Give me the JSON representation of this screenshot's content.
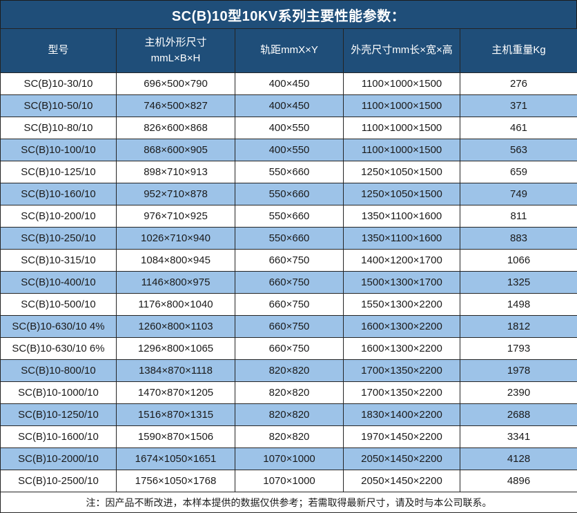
{
  "colors": {
    "header_bg": "#1F4E79",
    "stripe_blue": "#9DC3E8",
    "row_white": "#FFFFFF",
    "border": "#232323",
    "header_text": "#FFFFFF",
    "body_text": "#1A1A1A"
  },
  "chart_data": {
    "type": "table",
    "title": "SC(B)10型10KV系列主要性能参数：",
    "columns": [
      {
        "id": "model",
        "lines": [
          "型号"
        ]
      },
      {
        "id": "main-dimensions",
        "lines": [
          "主机外形尺寸",
          "mmL×B×H"
        ]
      },
      {
        "id": "rail-gauge",
        "lines": [
          "轨距mmX×Y"
        ]
      },
      {
        "id": "shell-dimensions",
        "lines": [
          "外壳尺寸mm长×宽×高"
        ]
      },
      {
        "id": "weight",
        "lines": [
          "主机重量Kg"
        ]
      }
    ],
    "rows": [
      [
        "SC(B)10-30/10",
        "696×500×790",
        "400×450",
        "1100×1000×1500",
        "276"
      ],
      [
        "SC(B)10-50/10",
        "746×500×827",
        "400×450",
        "1100×1000×1500",
        "371"
      ],
      [
        "SC(B)10-80/10",
        "826×600×868",
        "400×550",
        "1100×1000×1500",
        "461"
      ],
      [
        "SC(B)10-100/10",
        "868×600×905",
        "400×550",
        "1100×1000×1500",
        "563"
      ],
      [
        "SC(B)10-125/10",
        "898×710×913",
        "550×660",
        "1250×1050×1500",
        "659"
      ],
      [
        "SC(B)10-160/10",
        "952×710×878",
        "550×660",
        "1250×1050×1500",
        "749"
      ],
      [
        "SC(B)10-200/10",
        "976×710×925",
        "550×660",
        "1350×1100×1600",
        "811"
      ],
      [
        "SC(B)10-250/10",
        "1026×710×940",
        "550×660",
        "1350×1100×1600",
        "883"
      ],
      [
        "SC(B)10-315/10",
        "1084×800×945",
        "660×750",
        "1400×1200×1700",
        "1066"
      ],
      [
        "SC(B)10-400/10",
        "1146×800×975",
        "660×750",
        "1500×1300×1700",
        "1325"
      ],
      [
        "SC(B)10-500/10",
        "1176×800×1040",
        "660×750",
        "1550×1300×2200",
        "1498"
      ],
      [
        "SC(B)10-630/10 4%",
        "1260×800×1103",
        "660×750",
        "1600×1300×2200",
        "1812"
      ],
      [
        "SC(B)10-630/10 6%",
        "1296×800×1065",
        "660×750",
        "1600×1300×2200",
        "1793"
      ],
      [
        "SC(B)10-800/10",
        "1384×870×1118",
        "820×820",
        "1700×1350×2200",
        "1978"
      ],
      [
        "SC(B)10-1000/10",
        "1470×870×1205",
        "820×820",
        "1700×1350×2200",
        "2390"
      ],
      [
        "SC(B)10-1250/10",
        "1516×870×1315",
        "820×820",
        "1830×1400×2200",
        "2688"
      ],
      [
        "SC(B)10-1600/10",
        "1590×870×1506",
        "820×820",
        "1970×1450×2200",
        "3341"
      ],
      [
        "SC(B)10-2000/10",
        "1674×1050×1651",
        "1070×1000",
        "2050×1450×2200",
        "4128"
      ],
      [
        "SC(B)10-2500/10",
        "1756×1050×1768",
        "1070×1000",
        "2050×1450×2200",
        "4896"
      ]
    ],
    "note": "注：因产品不断改进，本样本提供的数据仅供参考；若需取得最新尺寸，请及时与本公司联系。",
    "stripe_pattern": "odd rows white, even rows blue (1-indexed)"
  }
}
